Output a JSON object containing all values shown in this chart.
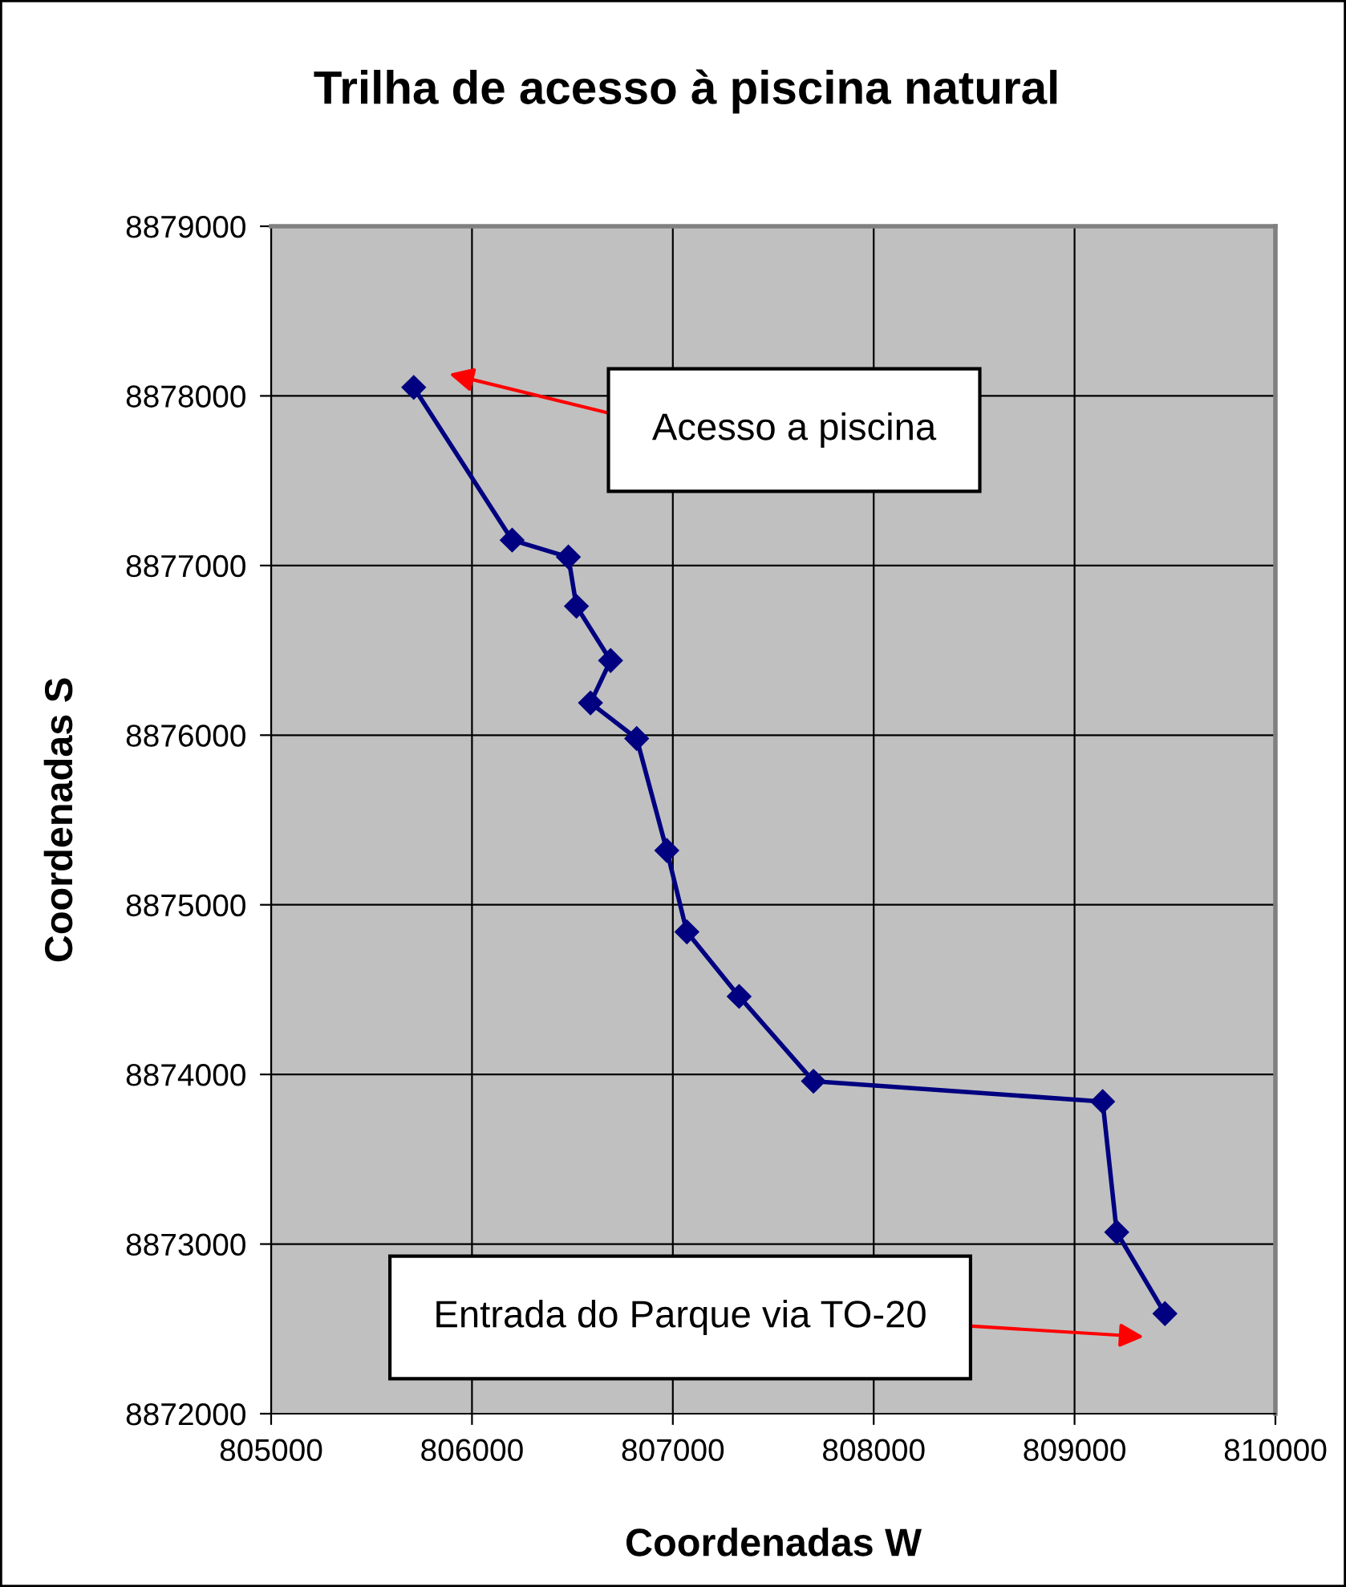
{
  "chart_data": {
    "type": "line",
    "title": "Trilha de acesso à piscina natural",
    "xlabel": "Coordenadas W",
    "ylabel": "Coordenadas S",
    "series": [
      {
        "color": "#000080",
        "x": [
          805710,
          806200,
          806480,
          806520,
          806690,
          806590,
          806820,
          806970,
          807070,
          807330,
          807700,
          809140,
          809210,
          809450
        ],
        "values": [
          8878050,
          8877150,
          8877050,
          8876760,
          8876440,
          8876190,
          8875980,
          8875320,
          8874840,
          8874460,
          8873960,
          8873840,
          8873070,
          8872590
        ]
      }
    ],
    "xlim": [
      805000,
      810000
    ],
    "ylim": [
      8872000,
      8879000
    ],
    "xticks": [
      805000,
      806000,
      807000,
      808000,
      809000,
      810000
    ],
    "yticks": [
      8872000,
      8873000,
      8874000,
      8875000,
      8876000,
      8877000,
      8878000,
      8879000
    ],
    "grid": true,
    "marker": "diamond",
    "line_style": "solid",
    "annotations": [
      "Acesso a piscina",
      "Entrada do Parque via TO-20"
    ]
  }
}
